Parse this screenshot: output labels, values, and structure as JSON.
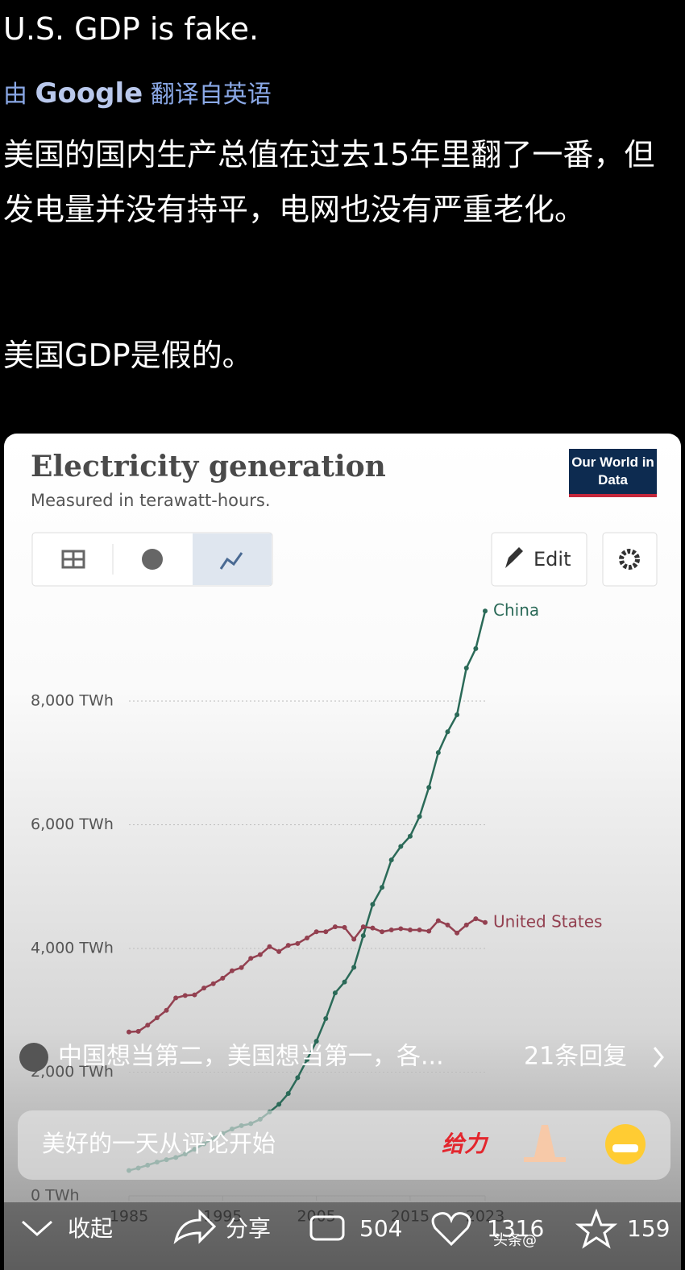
{
  "post": {
    "title": "U.S. GDP is fake.",
    "translation": {
      "prefix": "由",
      "brand": "Google",
      "suffix": "翻译自英语"
    },
    "body": "美国的国内生产总值在过去15年里翻了一番，但发电量并没有持平，电网也没有严重老化。",
    "conclusion": "美国GDP是假的。"
  },
  "chart_data": {
    "type": "line",
    "title": "Electricity generation",
    "subtitle": "Measured in terawatt-hours.",
    "source": "Our World in Data",
    "edit": "Edit",
    "x": [
      1985,
      1986,
      1987,
      1988,
      1989,
      1990,
      1991,
      1992,
      1993,
      1994,
      1995,
      1996,
      1997,
      1998,
      1999,
      2000,
      2001,
      2002,
      2003,
      2004,
      2005,
      2006,
      2007,
      2008,
      2009,
      2010,
      2011,
      2012,
      2013,
      2014,
      2015,
      2016,
      2017,
      2018,
      2019,
      2020,
      2021,
      2022,
      2023
    ],
    "series": [
      {
        "name": "China",
        "color": "#2b6a58",
        "values": [
          411,
          450,
          497,
          545,
          585,
          621,
          678,
          754,
          840,
          929,
          1008,
          1081,
          1135,
          1167,
          1239,
          1356,
          1480,
          1654,
          1911,
          2204,
          2500,
          2866,
          3282,
          3457,
          3696,
          4207,
          4713,
          4988,
          5432,
          5650,
          5815,
          6133,
          6604,
          7166,
          7503,
          7779,
          8534,
          8849,
          9456
        ]
      },
      {
        "name": "United States",
        "color": "#934050",
        "values": [
          2650,
          2660,
          2760,
          2880,
          3000,
          3200,
          3240,
          3250,
          3360,
          3430,
          3520,
          3640,
          3690,
          3840,
          3900,
          4030,
          3950,
          4050,
          4080,
          4170,
          4270,
          4270,
          4350,
          4340,
          4150,
          4350,
          4330,
          4270,
          4300,
          4320,
          4300,
          4300,
          4280,
          4450,
          4380,
          4250,
          4380,
          4480,
          4420
        ]
      }
    ],
    "xlim": [
      1985,
      2023
    ],
    "xticks": [
      1985,
      1995,
      2005,
      2015,
      2023
    ],
    "ylim": [
      0,
      10000
    ],
    "yticks": [
      {
        "value": 0,
        "label": "0 TWh"
      },
      {
        "value": 2000,
        "label": "2,000 TWh"
      },
      {
        "value": 4000,
        "label": "4,000 TWh"
      },
      {
        "value": 6000,
        "label": "6,000 TWh"
      },
      {
        "value": 8000,
        "label": "8,000 TWh"
      }
    ],
    "grid": true
  },
  "comment": {
    "preview": "中国想当第二，美国想当第一，各...",
    "replies": "21条回复"
  },
  "input": {
    "placeholder": "美好的一天从评论开始",
    "sticker": "给力"
  },
  "toolbar": {
    "collapse": "收起",
    "share": "分享",
    "comments": 504,
    "likes": 1316,
    "favorites": 159,
    "watermark": "头条@"
  }
}
